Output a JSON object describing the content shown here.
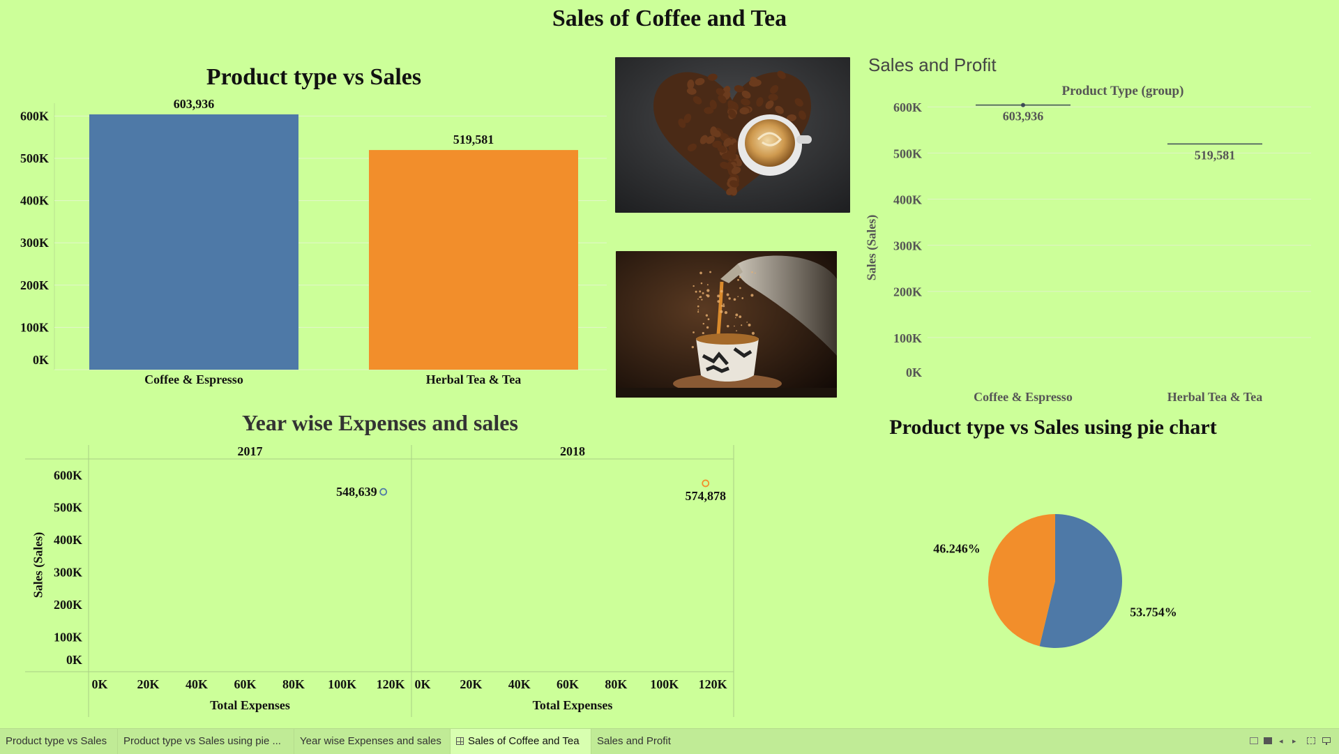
{
  "dashboard": {
    "title": "Sales of Coffee and Tea"
  },
  "bar_chart": {
    "title": "Product type vs Sales",
    "y_ticks": [
      "0K",
      "100K",
      "200K",
      "300K",
      "400K",
      "500K",
      "600K"
    ]
  },
  "scatter": {
    "title": "Year wise Expenses and sales",
    "y_label": "Sales (Sales)",
    "x_label": "Total Expenses",
    "y_ticks": [
      "0K",
      "100K",
      "200K",
      "300K",
      "400K",
      "500K",
      "600K"
    ],
    "x_ticks": [
      "0K",
      "20K",
      "40K",
      "60K",
      "80K",
      "100K",
      "120K"
    ]
  },
  "sales_profit": {
    "title": "Sales and Profit",
    "header": "Product Type (group)",
    "y_label": "Sales (Sales)",
    "y_ticks": [
      "0K",
      "100K",
      "200K",
      "300K",
      "400K",
      "500K",
      "600K"
    ]
  },
  "pie": {
    "title": "Product type vs Sales using pie chart"
  },
  "chart_data": [
    {
      "type": "bar",
      "title": "Product type vs Sales",
      "categories": [
        "Coffee & Espresso",
        "Herbal Tea & Tea"
      ],
      "values": [
        603936,
        519581
      ],
      "data_labels": [
        "603,936",
        "519,581"
      ],
      "colors": [
        "#4e79a7",
        "#f28e2b"
      ],
      "ylim": [
        0,
        660000
      ],
      "grid": true
    },
    {
      "type": "scatter",
      "title": "Year wise Expenses and sales",
      "panels": [
        {
          "name": "2017",
          "points": [
            {
              "x": 117000,
              "y": 548639,
              "label": "548,639"
            }
          ],
          "color": "#4e79a7"
        },
        {
          "name": "2018",
          "points": [
            {
              "x": 117000,
              "y": 574878,
              "label": "574,878"
            }
          ],
          "color": "#f28e2b"
        }
      ],
      "xlabel": "Total Expenses",
      "ylabel": "Sales (Sales)",
      "xlim": [
        0,
        124000
      ],
      "ylim": [
        0,
        620000
      ]
    },
    {
      "type": "line",
      "title": "Sales and Profit",
      "categories": [
        "Coffee & Espresso",
        "Herbal Tea & Tea"
      ],
      "values": [
        603936,
        519581
      ],
      "data_labels": [
        "603,936",
        "519,581"
      ],
      "xlabel": "Product Type (group)",
      "ylabel": "Sales (Sales)",
      "ylim": [
        0,
        620000
      ],
      "grid": true
    },
    {
      "type": "pie",
      "title": "Product type vs Sales using pie chart",
      "slices": [
        {
          "name": "Coffee & Espresso",
          "value": 53.754,
          "label": "53.754%",
          "color": "#4e79a7"
        },
        {
          "name": "Herbal Tea & Tea",
          "value": 46.246,
          "label": "46.246%",
          "color": "#f28e2b"
        }
      ]
    }
  ],
  "tabs": [
    {
      "label": "Product type vs Sales",
      "active": false
    },
    {
      "label": "Product type vs Sales using pie ...",
      "active": false
    },
    {
      "label": "Year wise Expenses and sales",
      "active": false
    },
    {
      "label": "Sales of Coffee and Tea",
      "active": true
    },
    {
      "label": "Sales and Profit",
      "active": false
    }
  ]
}
